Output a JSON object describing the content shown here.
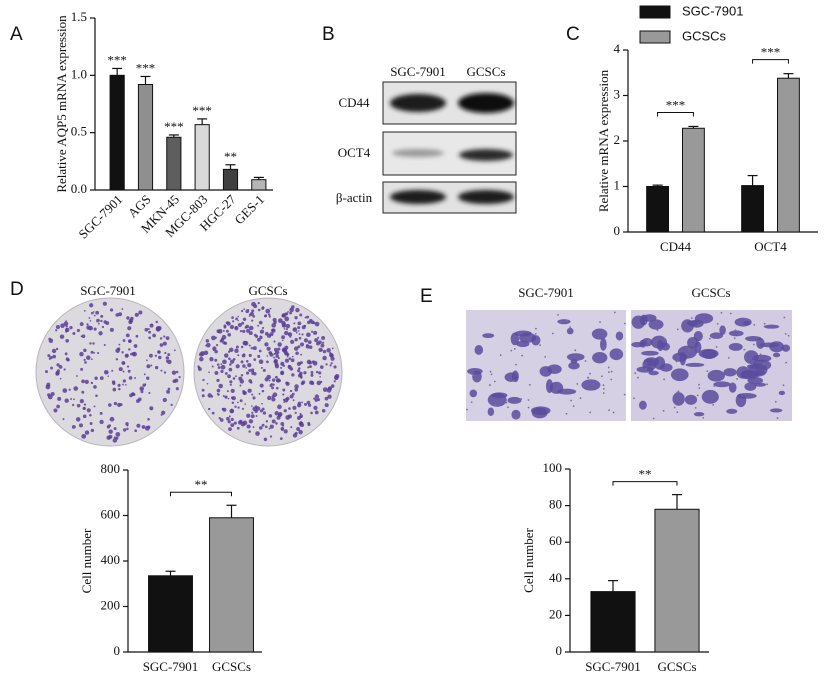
{
  "chart_data": [
    {
      "type": "bar",
      "panel_label": "A",
      "ylabel": "Relative AQP5 mRNA expression",
      "categories": [
        "SGC-7901",
        "AGS",
        "MKN-45",
        "MGC-803",
        "HGC-27",
        "GES-1"
      ],
      "values": [
        1.0,
        0.92,
        0.46,
        0.57,
        0.18,
        0.09
      ],
      "errors": [
        0.06,
        0.07,
        0.02,
        0.05,
        0.04,
        0.02
      ],
      "colors": [
        "#111111",
        "#8f8f8f",
        "#5e5e5e",
        "#d9d9d9",
        "#404040",
        "#b5b5b5"
      ],
      "annotations": [
        "***",
        "***",
        "***",
        "***",
        "**",
        null
      ],
      "ylim": [
        0,
        1.5
      ],
      "yticks": [
        {
          "value": 0,
          "label": "0.0"
        },
        0.5,
        {
          "value": 1,
          "label": "1.0"
        },
        1.5
      ]
    },
    {
      "type": "grouped-bar",
      "panel_label": "C",
      "ylabel": "Relative  mRNA expression",
      "categories": [
        "CD44",
        "OCT4"
      ],
      "series": [
        {
          "name": "SGC-7901",
          "color": "#111111",
          "values": [
            1.0,
            1.02
          ],
          "errors": [
            0.03,
            0.22
          ]
        },
        {
          "name": "GCSCs",
          "color": "#999999",
          "values": [
            2.28,
            3.38
          ],
          "errors": [
            0.04,
            0.1
          ]
        }
      ],
      "annotations": [
        "***",
        "***"
      ],
      "ylim": [
        0,
        4
      ],
      "yticks": [
        0,
        1,
        2,
        3,
        4
      ]
    },
    {
      "type": "bar",
      "panel_label": "D",
      "image_labels": [
        "SGC-7901",
        "GCSCs"
      ],
      "ylabel": "Cell number",
      "categories": [
        "SGC-7901",
        "GCSCs"
      ],
      "values": [
        335,
        590
      ],
      "errors": [
        20,
        55
      ],
      "colors": [
        "#111111",
        "#999999"
      ],
      "annotation": "**",
      "ylim": [
        0,
        800
      ],
      "yticks": [
        0,
        200,
        400,
        600,
        800
      ]
    },
    {
      "type": "bar",
      "panel_label": "E",
      "image_labels": [
        "SGC-7901",
        "GCSCs"
      ],
      "ylabel": "Cell number",
      "categories": [
        "SGC-7901",
        "GCSCs"
      ],
      "values": [
        33,
        78
      ],
      "errors": [
        6,
        8
      ],
      "colors": [
        "#111111",
        "#999999"
      ],
      "annotation": "**",
      "ylim": [
        0,
        100
      ],
      "yticks": [
        0,
        20,
        40,
        60,
        80,
        100
      ]
    }
  ],
  "blot": {
    "panel_label": "B",
    "columns": [
      "SGC-7901",
      "GCSCs"
    ],
    "rows": [
      "CD44",
      "OCT4",
      "β-actin"
    ]
  }
}
